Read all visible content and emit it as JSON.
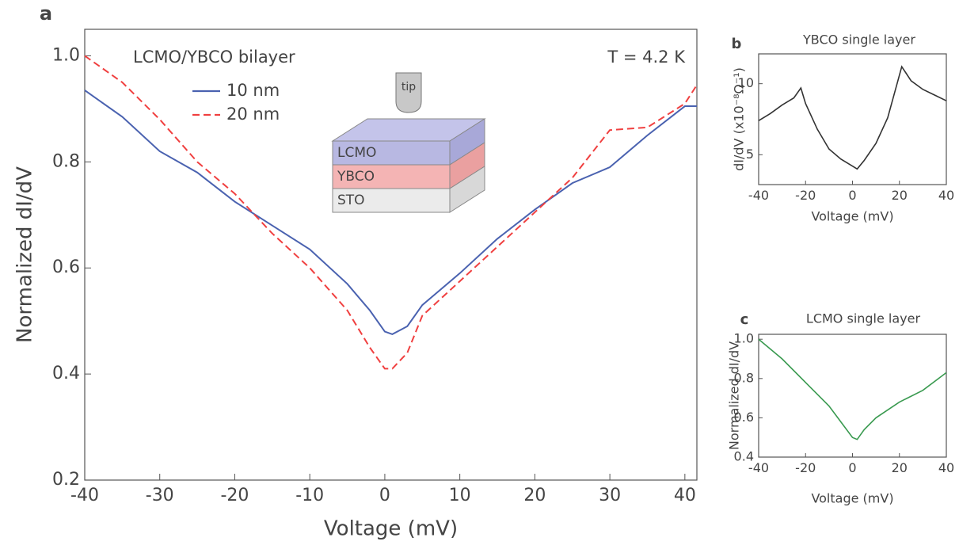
{
  "chart_data": [
    {
      "type": "line",
      "panel_label": "a",
      "xlabel": "Voltage (mV)",
      "ylabel": "Normalized dI/dV",
      "annotations": [
        "LCMO/YBCO bilayer",
        "T = 4.2 K"
      ],
      "diagram_labels": [
        "tip",
        "LCMO",
        "YBCO",
        "STO"
      ],
      "xlim": [
        -40,
        41.6
      ],
      "ylim": [
        0.2,
        1.05
      ],
      "xticks": [
        -40,
        -30,
        -20,
        -10,
        0,
        10,
        20,
        30,
        40
      ],
      "yticks": [
        0.2,
        0.4,
        0.6,
        0.8,
        {
          "value": 1,
          "label": "1.0"
        }
      ],
      "x": [
        -40,
        -35,
        -30,
        -25,
        -20,
        -15,
        -10,
        -5,
        -2,
        0,
        1,
        3,
        5,
        10,
        15,
        20,
        25,
        30,
        35,
        40,
        41.6
      ],
      "series": [
        {
          "name": "10 nm",
          "color": "#4a62b0",
          "line_style": "solid",
          "values": [
            0.935,
            0.885,
            0.82,
            0.78,
            0.725,
            0.68,
            0.635,
            0.57,
            0.52,
            0.48,
            0.475,
            0.49,
            0.53,
            0.59,
            0.655,
            0.71,
            0.76,
            0.79,
            0.85,
            0.905,
            0.905
          ]
        },
        {
          "name": "20 nm",
          "color": "#f04040",
          "line_style": "dashed",
          "values": [
            1.0,
            0.95,
            0.88,
            0.8,
            0.74,
            0.665,
            0.6,
            0.52,
            0.45,
            0.41,
            0.41,
            0.44,
            0.51,
            0.575,
            0.64,
            0.705,
            0.77,
            0.86,
            0.865,
            0.91,
            0.945
          ]
        }
      ]
    },
    {
      "type": "line",
      "panel_label": "b",
      "title": "YBCO single layer",
      "xlabel": "Voltage (mV)",
      "ylabel": "dI/dV (x10⁻⁸Ω⁻¹)",
      "xlim": [
        -40,
        40
      ],
      "ylim": [
        2.9,
        12.1
      ],
      "xticks": [
        -40,
        -20,
        0,
        20,
        40
      ],
      "yticks": [
        5,
        10
      ],
      "x": [
        -40,
        -35,
        -30,
        -25,
        -22,
        -20,
        -15,
        -10,
        -5,
        0,
        2,
        5,
        10,
        15,
        19,
        21,
        25,
        30,
        35,
        40
      ],
      "series": [
        {
          "color": "#333333",
          "line_style": "solid",
          "values": [
            7.4,
            7.9,
            8.5,
            9.0,
            9.7,
            8.6,
            6.8,
            5.4,
            4.7,
            4.2,
            4.0,
            4.6,
            5.8,
            7.6,
            10.0,
            11.2,
            10.2,
            9.6,
            9.2,
            8.8
          ]
        }
      ]
    },
    {
      "type": "line",
      "panel_label": "c",
      "title": "LCMO single layer",
      "xlabel": "Voltage (mV)",
      "ylabel": "Normalized dI/dV",
      "xlim": [
        -40,
        40
      ],
      "ylim": [
        0.4,
        1.025
      ],
      "xticks": [
        -40,
        -20,
        0,
        20,
        40
      ],
      "yticks": [
        0.4,
        0.6,
        0.8,
        {
          "value": 1,
          "label": "1.0"
        }
      ],
      "x": [
        -40,
        -30,
        -20,
        -10,
        -5,
        0,
        2,
        5,
        10,
        20,
        30,
        40
      ],
      "series": [
        {
          "color": "#3a9a50",
          "line_style": "solid",
          "values": [
            1.0,
            0.9,
            0.78,
            0.66,
            0.58,
            0.5,
            0.49,
            0.54,
            0.6,
            0.68,
            0.74,
            0.83
          ]
        }
      ]
    }
  ]
}
